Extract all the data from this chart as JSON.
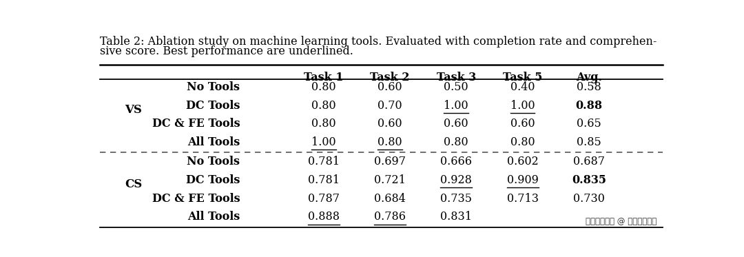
{
  "caption_line1": "Table 2: Ablation study on machine learning tools. Evaluated with completion rate and comprehen-",
  "caption_line2": "sive score. Best performance are underlined.",
  "col_headers": [
    "Task 1",
    "Task 2",
    "Task 3",
    "Task 5",
    "Avg."
  ],
  "sections": [
    {
      "group_label": "VS",
      "rows": [
        {
          "tool": "No Tools",
          "values": [
            "0.80",
            "0.60",
            "0.50",
            "0.40",
            "0.58"
          ],
          "underline": [
            false,
            false,
            false,
            false,
            false
          ],
          "bold": [
            false,
            false,
            false,
            false,
            false
          ]
        },
        {
          "tool": "DC Tools",
          "values": [
            "0.80",
            "0.70",
            "1.00",
            "1.00",
            "0.88"
          ],
          "underline": [
            false,
            false,
            true,
            true,
            false
          ],
          "bold": [
            false,
            false,
            false,
            false,
            true
          ]
        },
        {
          "tool": "DC & FE Tools",
          "values": [
            "0.80",
            "0.60",
            "0.60",
            "0.60",
            "0.65"
          ],
          "underline": [
            false,
            false,
            false,
            false,
            false
          ],
          "bold": [
            false,
            false,
            false,
            false,
            false
          ]
        },
        {
          "tool": "All Tools",
          "values": [
            "1.00",
            "0.80",
            "0.80",
            "0.80",
            "0.85"
          ],
          "underline": [
            true,
            true,
            false,
            false,
            false
          ],
          "bold": [
            false,
            false,
            false,
            false,
            false
          ]
        }
      ]
    },
    {
      "group_label": "CS",
      "rows": [
        {
          "tool": "No Tools",
          "values": [
            "0.781",
            "0.697",
            "0.666",
            "0.602",
            "0.687"
          ],
          "underline": [
            false,
            false,
            false,
            false,
            false
          ],
          "bold": [
            false,
            false,
            false,
            false,
            false
          ]
        },
        {
          "tool": "DC Tools",
          "values": [
            "0.781",
            "0.721",
            "0.928",
            "0.909",
            "0.835"
          ],
          "underline": [
            false,
            false,
            true,
            true,
            false
          ],
          "bold": [
            false,
            false,
            false,
            false,
            true
          ]
        },
        {
          "tool": "DC & FE Tools",
          "values": [
            "0.787",
            "0.684",
            "0.735",
            "0.713",
            "0.730"
          ],
          "underline": [
            false,
            false,
            false,
            false,
            false
          ],
          "bold": [
            false,
            false,
            false,
            false,
            false
          ]
        },
        {
          "tool": "All Tools",
          "values": [
            "0.888",
            "0.786",
            "0.831",
            "",
            ""
          ],
          "underline": [
            true,
            true,
            false,
            false,
            false
          ],
          "bold": [
            false,
            false,
            false,
            false,
            false
          ]
        }
      ]
    }
  ],
  "watermark": "掘金技术社区 @ 字节跳动开源",
  "background_color": "#ffffff",
  "font_size": 11.5,
  "caption_font_size": 11.5
}
